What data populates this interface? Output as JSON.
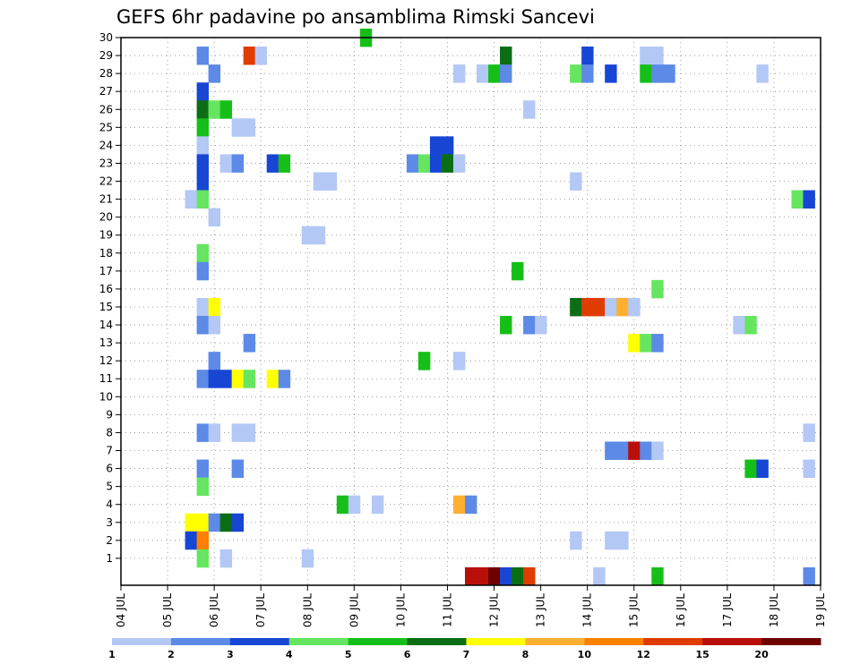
{
  "chart_data": {
    "type": "heatmap",
    "title": "GEFS 6hr padavine po ansamblima Rimski Sancevi",
    "xlabel": "",
    "ylabel": "",
    "x_ticks": [
      "04 JUL",
      "05 JUL",
      "06 JUL",
      "07 JUL",
      "08 JUL",
      "09 JUL",
      "10 JUL",
      "11 JUL",
      "12 JUL",
      "13 JUL",
      "14 JUL",
      "15 JUL",
      "16 JUL",
      "17 JUL",
      "18 JUL",
      "19 JUL"
    ],
    "xlim": [
      4,
      19
    ],
    "ylim": [
      0,
      30
    ],
    "y_ticks": [
      1,
      2,
      3,
      4,
      5,
      6,
      7,
      8,
      9,
      10,
      11,
      12,
      13,
      14,
      15,
      16,
      17,
      18,
      19,
      20,
      21,
      22,
      23,
      24,
      25,
      26,
      27,
      28,
      29,
      30
    ],
    "grid": true,
    "colorbar": {
      "labels": [
        "1",
        "2",
        "3",
        "4",
        "5",
        "6",
        "7",
        "8",
        "10",
        "12",
        "15",
        "20"
      ],
      "colors": [
        "#b3c8f5",
        "#5c8ae6",
        "#1846d4",
        "#66e660",
        "#16bf18",
        "#0c6e14",
        "#ffff00",
        "#ffb030",
        "#ff7f00",
        "#e03c00",
        "#b81008",
        "#6e0000"
      ]
    },
    "cells": [
      {
        "x": 5.75,
        "y": 29,
        "c": 1
      },
      {
        "x": 6.75,
        "y": 29,
        "c": 9
      },
      {
        "x": 7.0,
        "y": 29,
        "c": 0
      },
      {
        "x": 9.25,
        "y": 30,
        "c": 4
      },
      {
        "x": 12.25,
        "y": 29,
        "c": 5
      },
      {
        "x": 14.0,
        "y": 29,
        "c": 2
      },
      {
        "x": 15.25,
        "y": 29,
        "c": 0
      },
      {
        "x": 15.5,
        "y": 29,
        "c": 0
      },
      {
        "x": 6.0,
        "y": 28,
        "c": 1
      },
      {
        "x": 11.25,
        "y": 28,
        "c": 0
      },
      {
        "x": 11.75,
        "y": 28,
        "c": 0
      },
      {
        "x": 12.0,
        "y": 28,
        "c": 4
      },
      {
        "x": 12.25,
        "y": 28,
        "c": 1
      },
      {
        "x": 13.75,
        "y": 28,
        "c": 3
      },
      {
        "x": 14.0,
        "y": 28,
        "c": 1
      },
      {
        "x": 14.5,
        "y": 28,
        "c": 2
      },
      {
        "x": 15.25,
        "y": 28,
        "c": 4
      },
      {
        "x": 15.5,
        "y": 28,
        "c": 1
      },
      {
        "x": 15.75,
        "y": 28,
        "c": 1
      },
      {
        "x": 17.75,
        "y": 28,
        "c": 0
      },
      {
        "x": 5.75,
        "y": 27,
        "c": 2
      },
      {
        "x": 5.75,
        "y": 26,
        "c": 5
      },
      {
        "x": 6.0,
        "y": 26,
        "c": 3
      },
      {
        "x": 6.25,
        "y": 26,
        "c": 4
      },
      {
        "x": 12.75,
        "y": 26,
        "c": 0
      },
      {
        "x": 5.75,
        "y": 25,
        "c": 4
      },
      {
        "x": 6.5,
        "y": 25,
        "c": 0
      },
      {
        "x": 6.75,
        "y": 25,
        "c": 0
      },
      {
        "x": 5.75,
        "y": 24,
        "c": 0
      },
      {
        "x": 10.75,
        "y": 24,
        "c": 2
      },
      {
        "x": 11.0,
        "y": 24,
        "c": 2
      },
      {
        "x": 5.75,
        "y": 23,
        "c": 2
      },
      {
        "x": 6.25,
        "y": 23,
        "c": 0
      },
      {
        "x": 6.5,
        "y": 23,
        "c": 1
      },
      {
        "x": 7.25,
        "y": 23,
        "c": 2
      },
      {
        "x": 7.5,
        "y": 23,
        "c": 4
      },
      {
        "x": 10.25,
        "y": 23,
        "c": 1
      },
      {
        "x": 10.5,
        "y": 23,
        "c": 3
      },
      {
        "x": 10.75,
        "y": 23,
        "c": 2
      },
      {
        "x": 11.0,
        "y": 23,
        "c": 5
      },
      {
        "x": 11.25,
        "y": 23,
        "c": 0
      },
      {
        "x": 5.75,
        "y": 22,
        "c": 2
      },
      {
        "x": 8.25,
        "y": 22,
        "c": 0
      },
      {
        "x": 8.5,
        "y": 22,
        "c": 0
      },
      {
        "x": 13.75,
        "y": 22,
        "c": 0
      },
      {
        "x": 5.5,
        "y": 21,
        "c": 0
      },
      {
        "x": 5.75,
        "y": 21,
        "c": 3
      },
      {
        "x": 18.5,
        "y": 21,
        "c": 3
      },
      {
        "x": 18.75,
        "y": 21,
        "c": 2
      },
      {
        "x": 6.0,
        "y": 20,
        "c": 0
      },
      {
        "x": 8.0,
        "y": 19,
        "c": 0
      },
      {
        "x": 8.25,
        "y": 19,
        "c": 0
      },
      {
        "x": 5.75,
        "y": 18,
        "c": 3
      },
      {
        "x": 5.75,
        "y": 17,
        "c": 1
      },
      {
        "x": 12.5,
        "y": 17,
        "c": 4
      },
      {
        "x": 15.5,
        "y": 16,
        "c": 3
      },
      {
        "x": 5.75,
        "y": 15,
        "c": 0
      },
      {
        "x": 6.0,
        "y": 15,
        "c": 6
      },
      {
        "x": 13.75,
        "y": 15,
        "c": 5
      },
      {
        "x": 14.0,
        "y": 15,
        "c": 9
      },
      {
        "x": 14.25,
        "y": 15,
        "c": 9
      },
      {
        "x": 14.5,
        "y": 15,
        "c": 0
      },
      {
        "x": 14.75,
        "y": 15,
        "c": 7
      },
      {
        "x": 15.0,
        "y": 15,
        "c": 0
      },
      {
        "x": 5.75,
        "y": 14,
        "c": 1
      },
      {
        "x": 6.0,
        "y": 14,
        "c": 0
      },
      {
        "x": 12.25,
        "y": 14,
        "c": 4
      },
      {
        "x": 12.75,
        "y": 14,
        "c": 1
      },
      {
        "x": 13.0,
        "y": 14,
        "c": 0
      },
      {
        "x": 17.25,
        "y": 14,
        "c": 0
      },
      {
        "x": 17.5,
        "y": 14,
        "c": 3
      },
      {
        "x": 6.75,
        "y": 13,
        "c": 1
      },
      {
        "x": 15.0,
        "y": 13,
        "c": 6
      },
      {
        "x": 15.25,
        "y": 13,
        "c": 3
      },
      {
        "x": 15.5,
        "y": 13,
        "c": 1
      },
      {
        "x": 6.0,
        "y": 12,
        "c": 1
      },
      {
        "x": 10.5,
        "y": 12,
        "c": 4
      },
      {
        "x": 11.25,
        "y": 12,
        "c": 0
      },
      {
        "x": 5.75,
        "y": 11,
        "c": 1
      },
      {
        "x": 6.0,
        "y": 11,
        "c": 2
      },
      {
        "x": 6.25,
        "y": 11,
        "c": 2
      },
      {
        "x": 6.5,
        "y": 11,
        "c": 6
      },
      {
        "x": 6.75,
        "y": 11,
        "c": 3
      },
      {
        "x": 7.25,
        "y": 11,
        "c": 6
      },
      {
        "x": 7.5,
        "y": 11,
        "c": 1
      },
      {
        "x": 5.75,
        "y": 8,
        "c": 1
      },
      {
        "x": 6.0,
        "y": 8,
        "c": 0
      },
      {
        "x": 6.5,
        "y": 8,
        "c": 0
      },
      {
        "x": 6.75,
        "y": 8,
        "c": 0
      },
      {
        "x": 18.75,
        "y": 8,
        "c": 0
      },
      {
        "x": 14.5,
        "y": 7,
        "c": 1
      },
      {
        "x": 14.75,
        "y": 7,
        "c": 1
      },
      {
        "x": 15.0,
        "y": 7,
        "c": 10
      },
      {
        "x": 15.25,
        "y": 7,
        "c": 1
      },
      {
        "x": 15.5,
        "y": 7,
        "c": 0
      },
      {
        "x": 5.75,
        "y": 6,
        "c": 1
      },
      {
        "x": 6.5,
        "y": 6,
        "c": 1
      },
      {
        "x": 17.5,
        "y": 6,
        "c": 4
      },
      {
        "x": 17.75,
        "y": 6,
        "c": 2
      },
      {
        "x": 18.75,
        "y": 6,
        "c": 0
      },
      {
        "x": 5.75,
        "y": 5,
        "c": 3
      },
      {
        "x": 8.75,
        "y": 4,
        "c": 4
      },
      {
        "x": 9.0,
        "y": 4,
        "c": 0
      },
      {
        "x": 9.5,
        "y": 4,
        "c": 0
      },
      {
        "x": 11.25,
        "y": 4,
        "c": 7
      },
      {
        "x": 11.5,
        "y": 4,
        "c": 1
      },
      {
        "x": 5.5,
        "y": 3,
        "c": 6
      },
      {
        "x": 5.75,
        "y": 3,
        "c": 6
      },
      {
        "x": 6.0,
        "y": 3,
        "c": 1
      },
      {
        "x": 6.25,
        "y": 3,
        "c": 5
      },
      {
        "x": 6.5,
        "y": 3,
        "c": 2
      },
      {
        "x": 5.5,
        "y": 2,
        "c": 2
      },
      {
        "x": 5.75,
        "y": 2,
        "c": 8
      },
      {
        "x": 13.75,
        "y": 2,
        "c": 0
      },
      {
        "x": 14.5,
        "y": 2,
        "c": 0
      },
      {
        "x": 14.75,
        "y": 2,
        "c": 0
      },
      {
        "x": 5.75,
        "y": 1,
        "c": 3
      },
      {
        "x": 6.25,
        "y": 1,
        "c": 0
      },
      {
        "x": 8.0,
        "y": 1,
        "c": 0
      },
      {
        "x": 11.5,
        "y": 0,
        "c": 10
      },
      {
        "x": 11.75,
        "y": 0,
        "c": 10
      },
      {
        "x": 12.0,
        "y": 0,
        "c": 11
      },
      {
        "x": 12.25,
        "y": 0,
        "c": 2
      },
      {
        "x": 12.5,
        "y": 0,
        "c": 5
      },
      {
        "x": 12.75,
        "y": 0,
        "c": 9
      },
      {
        "x": 14.25,
        "y": 0,
        "c": 0
      },
      {
        "x": 15.5,
        "y": 0,
        "c": 4
      },
      {
        "x": 18.75,
        "y": 0,
        "c": 1
      }
    ]
  }
}
